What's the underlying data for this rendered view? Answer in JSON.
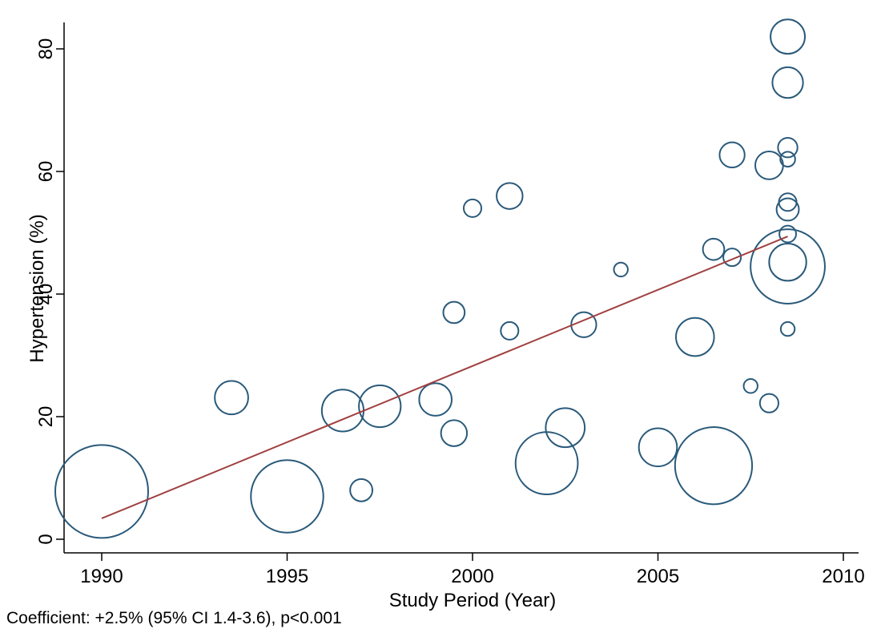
{
  "chart_data": {
    "type": "scatter",
    "title": "",
    "xlabel": "Study Period (Year)",
    "ylabel": "Hypertension (%)",
    "xlim": [
      1990,
      2010
    ],
    "ylim": [
      0,
      82
    ],
    "xticks": [
      "1990",
      "1995",
      "2000",
      "2005",
      "2010"
    ],
    "yticks": [
      "0",
      "20",
      "40",
      "60",
      "80"
    ],
    "grid": false,
    "legend": "none",
    "colors": {
      "marker": "#2a5a7a",
      "fit_line": "#a04040"
    },
    "series": [
      {
        "points": [
          {
            "x": 1990.0,
            "y": 7.8,
            "size": 1.0
          },
          {
            "x": 1993.5,
            "y": 23.1,
            "size": 0.36
          },
          {
            "x": 1995.0,
            "y": 7.0,
            "size": 0.78
          },
          {
            "x": 1996.5,
            "y": 21.0,
            "size": 0.45
          },
          {
            "x": 1997.0,
            "y": 8.0,
            "size": 0.24
          },
          {
            "x": 1997.5,
            "y": 21.7,
            "size": 0.45
          },
          {
            "x": 1999.0,
            "y": 22.8,
            "size": 0.35
          },
          {
            "x": 1999.5,
            "y": 37.0,
            "size": 0.23
          },
          {
            "x": 1999.5,
            "y": 17.3,
            "size": 0.28
          },
          {
            "x": 2000.0,
            "y": 54.0,
            "size": 0.19
          },
          {
            "x": 2001.0,
            "y": 56.0,
            "size": 0.28
          },
          {
            "x": 2001.0,
            "y": 34.0,
            "size": 0.19
          },
          {
            "x": 2002.0,
            "y": 12.4,
            "size": 0.67
          },
          {
            "x": 2002.5,
            "y": 18.2,
            "size": 0.42
          },
          {
            "x": 2003.0,
            "y": 35.0,
            "size": 0.27
          },
          {
            "x": 2004.0,
            "y": 44.0,
            "size": 0.15
          },
          {
            "x": 2005.0,
            "y": 15.0,
            "size": 0.41
          },
          {
            "x": 2006.0,
            "y": 33.0,
            "size": 0.41
          },
          {
            "x": 2006.5,
            "y": 47.3,
            "size": 0.23
          },
          {
            "x": 2006.5,
            "y": 12.0,
            "size": 0.83
          },
          {
            "x": 2007.0,
            "y": 62.7,
            "size": 0.27
          },
          {
            "x": 2007.0,
            "y": 46.0,
            "size": 0.19
          },
          {
            "x": 2007.5,
            "y": 25.0,
            "size": 0.15
          },
          {
            "x": 2008.0,
            "y": 61.0,
            "size": 0.3
          },
          {
            "x": 2008.0,
            "y": 22.2,
            "size": 0.2
          },
          {
            "x": 2008.5,
            "y": 82.0,
            "size": 0.37
          },
          {
            "x": 2008.5,
            "y": 74.5,
            "size": 0.33
          },
          {
            "x": 2008.5,
            "y": 63.9,
            "size": 0.21
          },
          {
            "x": 2008.5,
            "y": 62.0,
            "size": 0.16
          },
          {
            "x": 2008.5,
            "y": 55.0,
            "size": 0.19
          },
          {
            "x": 2008.5,
            "y": 53.8,
            "size": 0.24
          },
          {
            "x": 2008.5,
            "y": 49.8,
            "size": 0.18
          },
          {
            "x": 2008.5,
            "y": 45.2,
            "size": 0.4
          },
          {
            "x": 2008.5,
            "y": 44.5,
            "size": 0.8
          },
          {
            "x": 2008.5,
            "y": 34.3,
            "size": 0.15
          }
        ]
      }
    ],
    "fit_line": {
      "x": [
        1990.0,
        2008.5
      ],
      "y": [
        3.4,
        49.4
      ]
    },
    "annotation": "Coefficient: +2.5% (95% CI 1.4-3.6), p<0.001"
  }
}
